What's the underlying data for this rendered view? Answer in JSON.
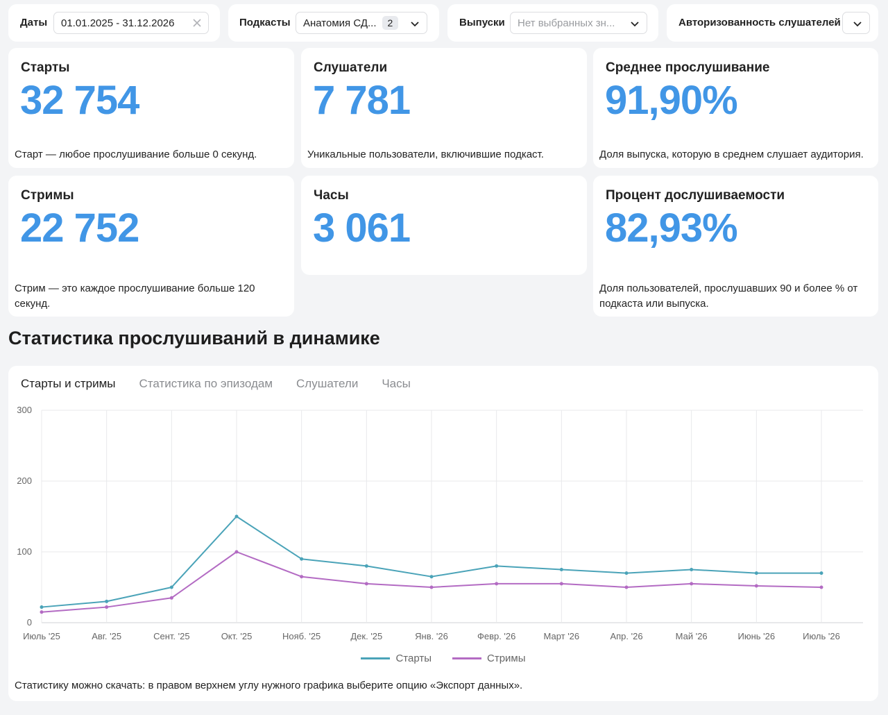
{
  "filters": {
    "dates": {
      "label": "Даты",
      "value": "01.01.2025 - 31.12.2026"
    },
    "podcasts": {
      "label": "Подкасты",
      "value": "Анатомия СД...",
      "count": "2"
    },
    "episodes": {
      "label": "Выпуски",
      "placeholder": "Нет выбранных зн..."
    },
    "auth": {
      "label": "Авторизованность слушателей"
    }
  },
  "cards": {
    "starts": {
      "title": "Старты",
      "value": "32 754",
      "desc": "Старт — любое прослушивание больше 0 секунд."
    },
    "listeners": {
      "title": "Слушатели",
      "value": "7 781",
      "desc": "Уникальные пользователи, включившие подкаст."
    },
    "avg": {
      "title": "Среднее прослушивание",
      "value": "91,90%",
      "desc": "Доля выпуска, которую в среднем слушает аудитория."
    },
    "streams": {
      "title": "Стримы",
      "value": "22 752",
      "desc": "Стрим — это каждое прослушивание больше 120 секунд."
    },
    "hours": {
      "title": "Часы",
      "value": "3 061"
    },
    "completion": {
      "title": "Процент дослушиваемости",
      "value": "82,93%",
      "desc": "Доля пользователей, прослушавших 90 и более % от подкаста или выпуска."
    }
  },
  "section": {
    "title": "Статистика прослушиваний в динамике"
  },
  "tabs": [
    "Старты и стримы",
    "Статистика по эпизодам",
    "Слушатели",
    "Часы"
  ],
  "active_tab": 0,
  "footnote": "Статистику можно скачать: в правом верхнем углу нужного графика выберите опцию «Экспорт данных».",
  "colors": {
    "accent": "#4196e6",
    "starts": "#4aa3b8",
    "streams": "#b36bc3"
  },
  "chart_data": {
    "type": "line",
    "ylim": [
      0,
      300
    ],
    "yticks": [
      0,
      100,
      200,
      300
    ],
    "grid": true,
    "legend_position": "bottom",
    "x_ticks": [
      "Июль '25",
      "Авг. '25",
      "Сент. '25",
      "Окт. '25",
      "Нояб. '25",
      "Дек. '25",
      "Янв. '26",
      "Февр. '26",
      "Март '26",
      "Апр. '26",
      "Май '26",
      "Июнь '26",
      "Июль '26"
    ],
    "x_note": "points are monthly averages per tick month, read approximately from the daily chart",
    "series": [
      {
        "name": "Старты",
        "values": [
          22,
          30,
          50,
          150,
          90,
          80,
          65,
          80,
          75,
          70,
          75,
          70,
          70
        ]
      },
      {
        "name": "Стримы",
        "values": [
          15,
          22,
          35,
          100,
          65,
          55,
          50,
          55,
          55,
          50,
          55,
          52,
          50
        ]
      }
    ]
  }
}
